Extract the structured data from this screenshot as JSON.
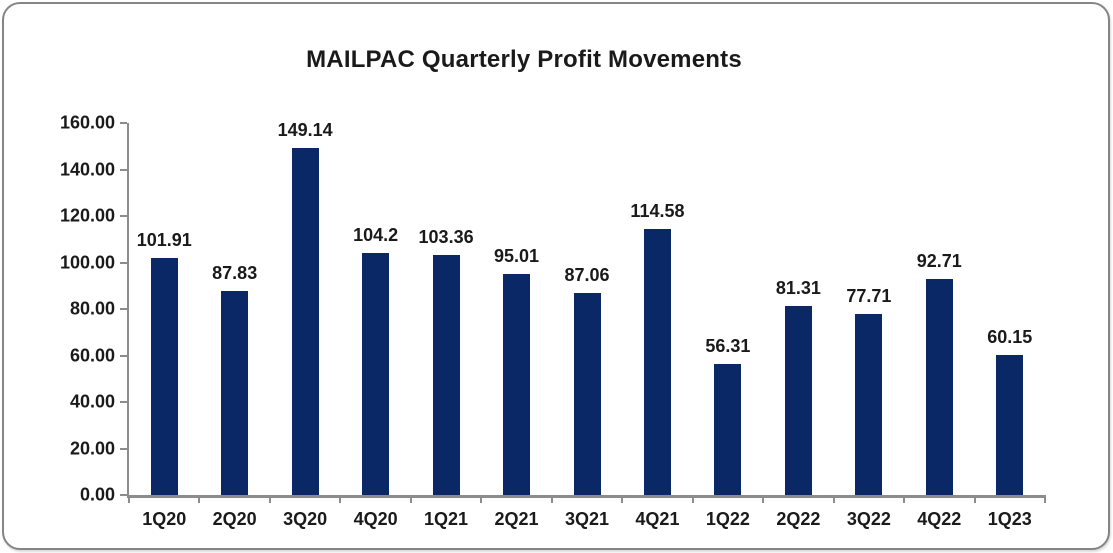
{
  "title": "MAILPAC Quarterly Profit Movements",
  "chart_data": {
    "type": "bar",
    "title": "MAILPAC Quarterly Profit Movements",
    "categories": [
      "1Q20",
      "2Q20",
      "3Q20",
      "4Q20",
      "1Q21",
      "2Q21",
      "3Q21",
      "4Q21",
      "1Q22",
      "2Q22",
      "3Q22",
      "4Q22",
      "1Q23"
    ],
    "values": [
      101.91,
      87.83,
      149.14,
      104.2,
      103.36,
      95.01,
      87.06,
      114.58,
      56.31,
      81.31,
      77.71,
      92.71,
      60.15
    ],
    "data_labels": [
      "101.91",
      "87.83",
      "149.14",
      "104.2",
      "103.36",
      "95.01",
      "87.06",
      "114.58",
      "56.31",
      "81.31",
      "77.71",
      "92.71",
      "60.15"
    ],
    "xlabel": "",
    "ylabel": "",
    "ylim": [
      0,
      160
    ],
    "ytick_step": 20,
    "ytick_labels": [
      "0.00",
      "20.00",
      "40.00",
      "60.00",
      "80.00",
      "100.00",
      "120.00",
      "140.00",
      "160.00"
    ],
    "grid": false,
    "legend": false,
    "colors": {
      "bar": "#0A2866",
      "axis": "#8C8C8C",
      "text": "#1A1A1A",
      "frame_border": "#858585",
      "background": "#FFFFFF"
    }
  }
}
